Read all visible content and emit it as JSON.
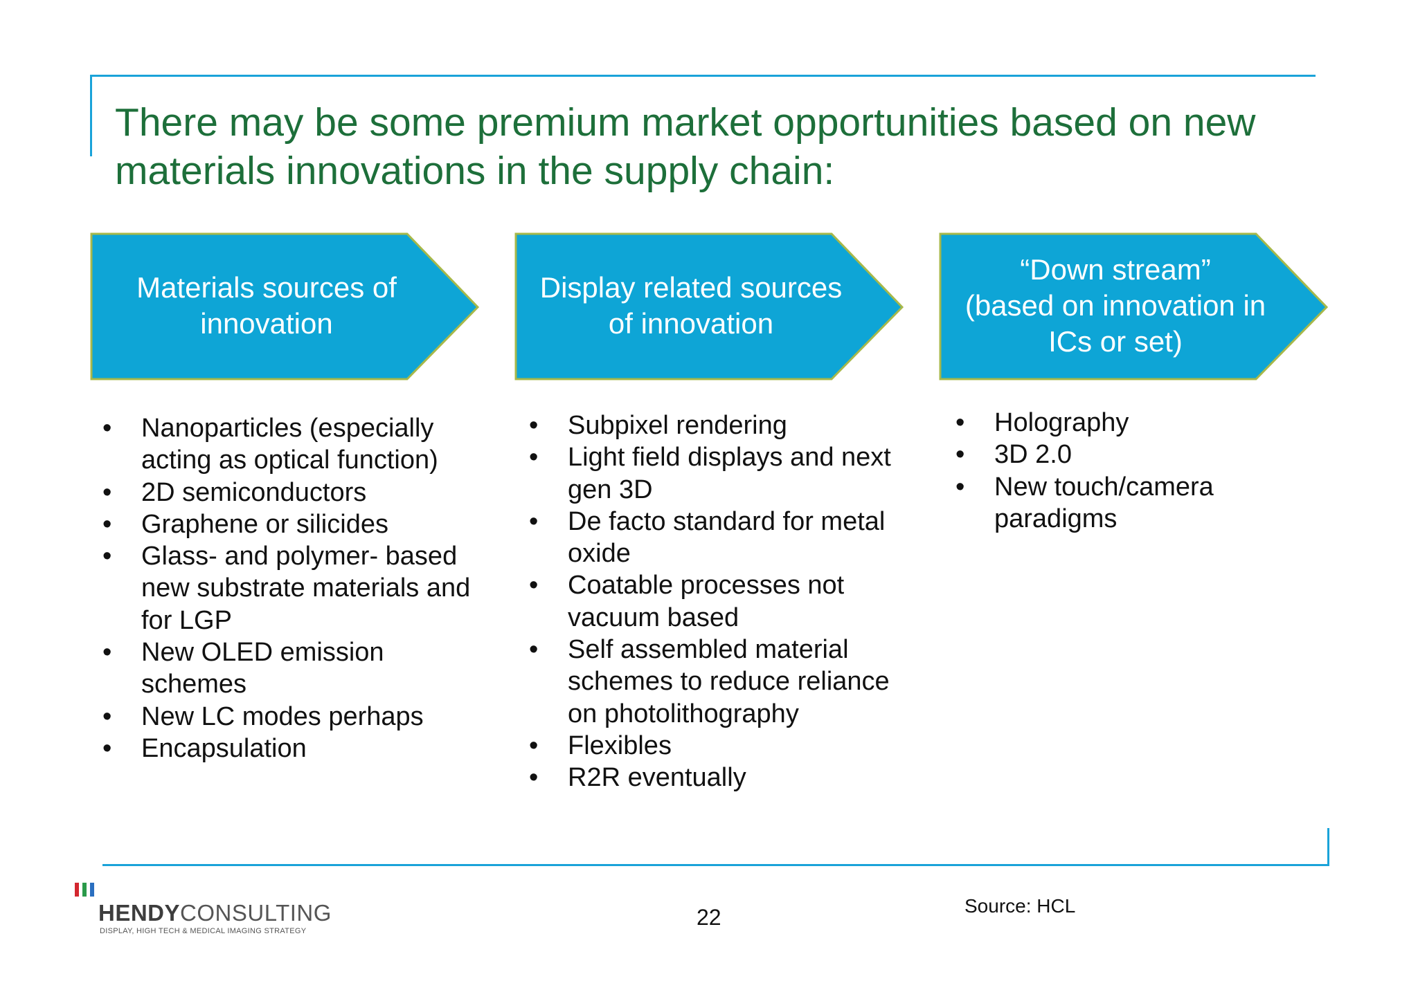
{
  "slide": {
    "title": "There may be some premium market opportunities based on new materials innovations in the supply chain:",
    "colors": {
      "title": "#1d6f3a",
      "arrow_fill": "#0ea5d6",
      "arrow_border": "#a7b84a",
      "frame": "#1aa3d9"
    },
    "columns": [
      {
        "heading_lines": [
          "Materials sources of",
          "innovation"
        ],
        "bullets": [
          "Nanoparticles (especially acting as optical function)",
          "2D semiconductors",
          "Graphene or silicides",
          "Glass- and polymer- based new substrate materials and for LGP",
          "New OLED emission schemes",
          "New LC modes perhaps",
          "Encapsulation"
        ]
      },
      {
        "heading_lines": [
          "Display related sources",
          "of innovation"
        ],
        "bullets": [
          "Subpixel rendering",
          "Light field displays and next gen 3D",
          "De facto standard for metal oxide",
          "Coatable processes not vacuum based",
          "Self assembled material schemes to reduce reliance on photolithography",
          "Flexibles",
          "R2R eventually"
        ]
      },
      {
        "heading_lines": [
          "“Down stream”",
          "(based on innovation in",
          "ICs or set)"
        ],
        "bullets": [
          "Holography",
          "3D 2.0",
          "New touch/camera paradigms"
        ]
      }
    ],
    "footer": {
      "logo_name_bold": "HENDY",
      "logo_name_light": "CONSULTING",
      "logo_tagline": "DISPLAY, HIGH TECH & MEDICAL IMAGING STRATEGY",
      "logo_bar_colors": [
        "#d3272f",
        "#2a9a4a",
        "#2a6fc0"
      ],
      "page_number": "22",
      "source": "Source: HCL"
    }
  }
}
